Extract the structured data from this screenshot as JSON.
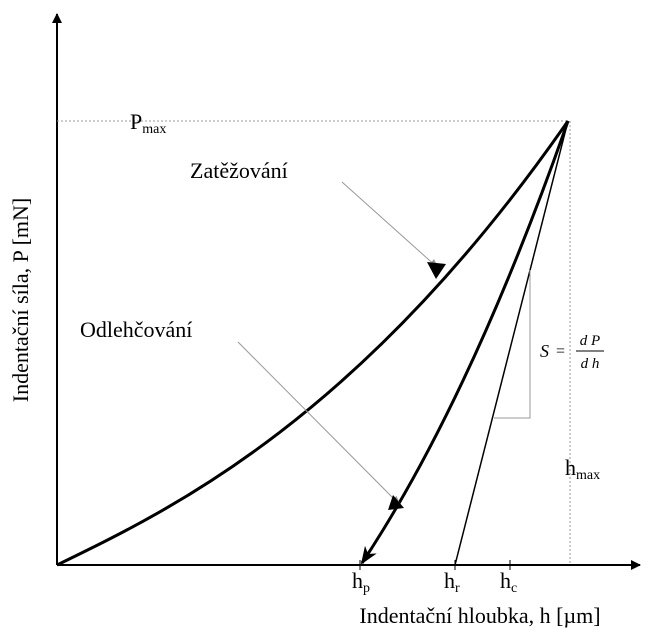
{
  "axes": {
    "y_label": "Indentační síla, P [mN]",
    "x_label": "Indentační hloubka, h [µm]"
  },
  "labels": {
    "p_max": {
      "symbol": "P",
      "subscript": "max"
    },
    "h_p": {
      "symbol": "h",
      "subscript": "p"
    },
    "h_r": {
      "symbol": "h",
      "subscript": "r"
    },
    "h_c": {
      "symbol": "h",
      "subscript": "c"
    },
    "h_max": {
      "symbol": "h",
      "subscript": "max"
    }
  },
  "curves": {
    "loading": "Zatěžování",
    "unloading": "Odlehčování"
  },
  "formula": {
    "lhs": "S",
    "equals": "=",
    "numerator": "d P",
    "denominator": "d h"
  }
}
